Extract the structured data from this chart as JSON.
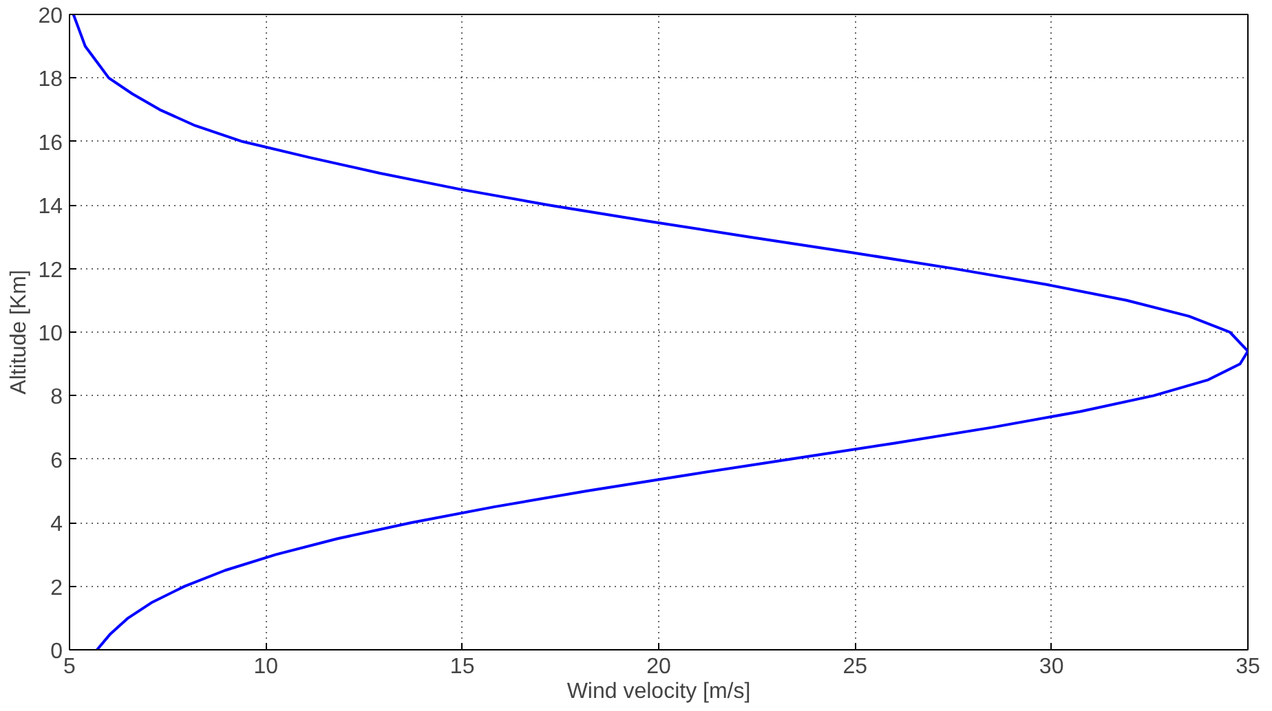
{
  "chart_data": {
    "type": "line",
    "xlabel": "Wind velocity [m/s]",
    "ylabel": "Altitude [Km]",
    "xlim": [
      5,
      35
    ],
    "xticks": [
      5,
      10,
      15,
      20,
      25,
      30,
      35
    ],
    "ylim": [
      0,
      20
    ],
    "yticks": [
      0,
      2,
      4,
      6,
      8,
      10,
      12,
      14,
      16,
      18,
      20
    ],
    "grid": true,
    "marker": "none",
    "line_style": "solid",
    "series": [
      {
        "color": "#0000ff",
        "x": [
          5.7,
          6.04,
          6.49,
          7.11,
          7.93,
          8.96,
          10.26,
          11.83,
          13.69,
          15.81,
          18.17,
          20.71,
          23.35,
          25.98,
          28.48,
          30.73,
          32.6,
          33.99,
          34.8,
          35.0,
          34.54,
          33.5,
          31.91,
          29.87,
          27.51,
          24.94,
          22.29,
          19.68,
          17.2,
          14.93,
          12.91,
          11.1,
          9.4,
          8.2,
          7.3,
          6.6,
          6.0,
          5.7,
          5.4,
          5.25,
          5.1
        ],
        "values": [
          0,
          0.5,
          1,
          1.5,
          2,
          2.5,
          3,
          3.5,
          4,
          4.5,
          5,
          5.5,
          6,
          6.5,
          7,
          7.5,
          8,
          8.5,
          9,
          9.4,
          10,
          10.5,
          11,
          11.5,
          12,
          12.5,
          13,
          13.5,
          14,
          14.5,
          15,
          15.5,
          16,
          16.5,
          17,
          17.5,
          18,
          18.5,
          19,
          19.5,
          20
        ]
      }
    ]
  }
}
